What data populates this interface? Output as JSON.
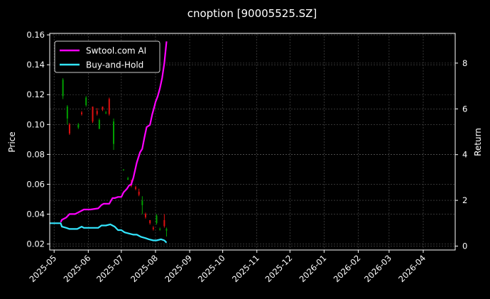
{
  "chart_data": {
    "type": "line",
    "title": "cnoption [90005525.SZ]",
    "ylabel_left": "Price",
    "ylabel_right": "Return",
    "ylim_left": [
      0.016,
      0.161
    ],
    "ylim_right": [
      -0.17,
      9.3
    ],
    "xlim": [
      "2025-04-27",
      "2026-04-30"
    ],
    "x_ticks": [
      "2025-05",
      "2025-06",
      "2025-07",
      "2025-08",
      "2025-09",
      "2025-10",
      "2025-11",
      "2025-12",
      "2026-01",
      "2026-02",
      "2026-03",
      "2026-04"
    ],
    "y_ticks_left": [
      "0.02",
      "0.04",
      "0.06",
      "0.08",
      "0.10",
      "0.12",
      "0.14",
      "0.16"
    ],
    "y_ticks_right": [
      "0",
      "2",
      "4",
      "6",
      "8"
    ],
    "grid": true,
    "legend_position": "top-left",
    "colors": {
      "background": "#000000",
      "strategy": "#ff00ff",
      "benchmark": "#33e6ff",
      "up_candle": "#00a000",
      "down_candle": "#e01010",
      "grid": "#555555",
      "axes": "#ffffff"
    },
    "series": [
      {
        "name": "Swtool.com AI",
        "axis": "right",
        "x": [
          "2025-05-07",
          "2025-05-08",
          "2025-05-12",
          "2025-05-15",
          "2025-05-20",
          "2025-05-22",
          "2025-05-26",
          "2025-05-28",
          "2025-06-03",
          "2025-06-10",
          "2025-06-13",
          "2025-06-15",
          "2025-06-20",
          "2025-06-23",
          "2025-06-25",
          "2025-06-28",
          "2025-07-01",
          "2025-07-03",
          "2025-07-06",
          "2025-07-08",
          "2025-07-10",
          "2025-07-12",
          "2025-07-15",
          "2025-07-18",
          "2025-07-20",
          "2025-07-22",
          "2025-07-24",
          "2025-07-27",
          "2025-07-29",
          "2025-07-31",
          "2025-08-01",
          "2025-08-03",
          "2025-08-05",
          "2025-08-07",
          "2025-08-09",
          "2025-08-11"
        ],
        "values": [
          1.05,
          1.15,
          1.25,
          1.4,
          1.4,
          1.45,
          1.55,
          1.6,
          1.6,
          1.65,
          1.8,
          1.85,
          1.85,
          2.1,
          2.1,
          2.15,
          2.15,
          2.35,
          2.5,
          2.65,
          2.7,
          3.0,
          3.65,
          4.1,
          4.25,
          4.75,
          5.2,
          5.3,
          5.75,
          6.1,
          6.3,
          6.55,
          6.9,
          7.35,
          8.0,
          8.95
        ]
      },
      {
        "name": "Buy-and-Hold",
        "axis": "right",
        "x": [
          "2025-04-27",
          "2025-05-07",
          "2025-05-08",
          "2025-05-12",
          "2025-05-15",
          "2025-05-20",
          "2025-05-22",
          "2025-05-26",
          "2025-05-28",
          "2025-06-05",
          "2025-06-10",
          "2025-06-13",
          "2025-06-17",
          "2025-06-21",
          "2025-06-25",
          "2025-06-28",
          "2025-07-01",
          "2025-07-04",
          "2025-07-08",
          "2025-07-12",
          "2025-07-15",
          "2025-07-19",
          "2025-07-23",
          "2025-07-26",
          "2025-07-30",
          "2025-08-02",
          "2025-08-06",
          "2025-08-09",
          "2025-08-11"
        ],
        "values": [
          1.0,
          1.0,
          0.85,
          0.8,
          0.75,
          0.75,
          0.75,
          0.85,
          0.8,
          0.8,
          0.8,
          0.9,
          0.9,
          0.95,
          0.85,
          0.7,
          0.7,
          0.6,
          0.55,
          0.5,
          0.5,
          0.4,
          0.35,
          0.3,
          0.25,
          0.25,
          0.3,
          0.25,
          0.15
        ]
      }
    ],
    "candles": [
      {
        "date": "2025-05-09",
        "open": 0.119,
        "high": 0.131,
        "low": 0.117,
        "close": 0.13
      },
      {
        "date": "2025-05-13",
        "open": 0.104,
        "high": 0.113,
        "low": 0.1,
        "close": 0.112
      },
      {
        "date": "2025-05-15",
        "open": 0.1,
        "high": 0.101,
        "low": 0.093,
        "close": 0.094
      },
      {
        "date": "2025-05-23",
        "open": 0.098,
        "high": 0.101,
        "low": 0.097,
        "close": 0.1
      },
      {
        "date": "2025-05-26",
        "open": 0.108,
        "high": 0.109,
        "low": 0.106,
        "close": 0.107
      },
      {
        "date": "2025-05-30",
        "open": 0.113,
        "high": 0.119,
        "low": 0.112,
        "close": 0.118
      },
      {
        "date": "2025-06-05",
        "open": 0.112,
        "high": 0.112,
        "low": 0.101,
        "close": 0.102
      },
      {
        "date": "2025-06-09",
        "open": 0.109,
        "high": 0.111,
        "low": 0.106,
        "close": 0.107
      },
      {
        "date": "2025-06-11",
        "open": 0.097,
        "high": 0.104,
        "low": 0.097,
        "close": 0.103
      },
      {
        "date": "2025-06-14",
        "open": 0.112,
        "high": 0.112,
        "low": 0.109,
        "close": 0.11
      },
      {
        "date": "2025-06-17",
        "open": 0.108,
        "high": 0.109,
        "low": 0.107,
        "close": 0.108
      },
      {
        "date": "2025-06-20",
        "open": 0.117,
        "high": 0.118,
        "low": 0.106,
        "close": 0.107
      },
      {
        "date": "2025-06-24",
        "open": 0.087,
        "high": 0.104,
        "low": 0.083,
        "close": 0.102
      },
      {
        "date": "2025-07-03",
        "open": 0.07,
        "high": 0.07,
        "low": 0.069,
        "close": 0.07
      },
      {
        "date": "2025-07-07",
        "open": 0.063,
        "high": 0.065,
        "low": 0.063,
        "close": 0.064
      },
      {
        "date": "2025-07-10",
        "open": 0.061,
        "high": 0.063,
        "low": 0.058,
        "close": 0.059
      },
      {
        "date": "2025-07-14",
        "open": 0.058,
        "high": 0.059,
        "low": 0.056,
        "close": 0.057
      },
      {
        "date": "2025-07-17",
        "open": 0.055,
        "high": 0.057,
        "low": 0.052,
        "close": 0.053
      },
      {
        "date": "2025-07-20",
        "open": 0.046,
        "high": 0.052,
        "low": 0.04,
        "close": 0.049
      },
      {
        "date": "2025-07-23",
        "open": 0.04,
        "high": 0.041,
        "low": 0.037,
        "close": 0.038
      },
      {
        "date": "2025-07-27",
        "open": 0.036,
        "high": 0.036,
        "low": 0.033,
        "close": 0.034
      },
      {
        "date": "2025-07-30",
        "open": 0.031,
        "high": 0.032,
        "low": 0.029,
        "close": 0.03
      },
      {
        "date": "2025-08-02",
        "open": 0.034,
        "high": 0.04,
        "low": 0.033,
        "close": 0.039
      },
      {
        "date": "2025-08-05",
        "open": 0.03,
        "high": 0.031,
        "low": 0.029,
        "close": 0.03
      },
      {
        "date": "2025-08-09",
        "open": 0.036,
        "high": 0.04,
        "low": 0.031,
        "close": 0.032
      },
      {
        "date": "2025-08-11",
        "open": 0.029,
        "high": 0.031,
        "low": 0.025,
        "close": 0.03
      }
    ]
  }
}
